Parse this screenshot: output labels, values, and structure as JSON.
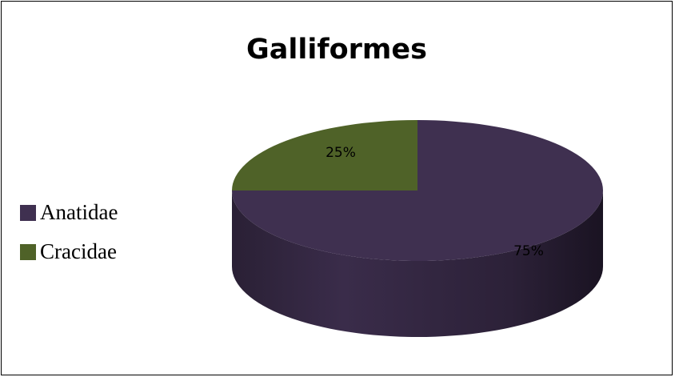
{
  "chart_data": {
    "type": "pie",
    "title": "Galliformes",
    "style": "3d",
    "legend_position": "left",
    "slices": [
      {
        "name": "Anatidae",
        "value": 75,
        "label": "75%",
        "color": "#3f3050"
      },
      {
        "name": "Cracidae",
        "value": 25,
        "label": "25%",
        "color": "#4f6228"
      }
    ]
  }
}
